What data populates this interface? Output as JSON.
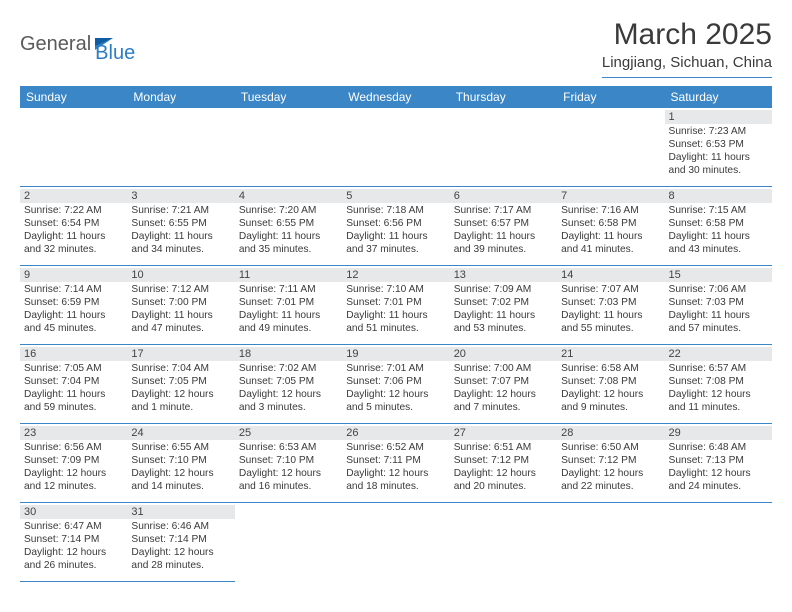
{
  "brand": {
    "part1": "General",
    "part2": "Blue"
  },
  "header": {
    "title": "March 2025",
    "location": "Lingjiang, Sichuan, China"
  },
  "colors": {
    "header_bg": "#3b86c6",
    "header_text": "#ffffff",
    "daynum_bg": "#e7e8e9",
    "rule": "#3b86c6",
    "text": "#3a3a3a",
    "logo_gray": "#5a5a5a",
    "logo_blue": "#2d7dc4"
  },
  "weekdays": [
    "Sunday",
    "Monday",
    "Tuesday",
    "Wednesday",
    "Thursday",
    "Friday",
    "Saturday"
  ],
  "cells": [
    {
      "blank": true
    },
    {
      "blank": true
    },
    {
      "blank": true
    },
    {
      "blank": true
    },
    {
      "blank": true
    },
    {
      "blank": true
    },
    {
      "day": "1",
      "sunrise": "Sunrise: 7:23 AM",
      "sunset": "Sunset: 6:53 PM",
      "daylight1": "Daylight: 11 hours",
      "daylight2": "and 30 minutes."
    },
    {
      "day": "2",
      "sunrise": "Sunrise: 7:22 AM",
      "sunset": "Sunset: 6:54 PM",
      "daylight1": "Daylight: 11 hours",
      "daylight2": "and 32 minutes."
    },
    {
      "day": "3",
      "sunrise": "Sunrise: 7:21 AM",
      "sunset": "Sunset: 6:55 PM",
      "daylight1": "Daylight: 11 hours",
      "daylight2": "and 34 minutes."
    },
    {
      "day": "4",
      "sunrise": "Sunrise: 7:20 AM",
      "sunset": "Sunset: 6:55 PM",
      "daylight1": "Daylight: 11 hours",
      "daylight2": "and 35 minutes."
    },
    {
      "day": "5",
      "sunrise": "Sunrise: 7:18 AM",
      "sunset": "Sunset: 6:56 PM",
      "daylight1": "Daylight: 11 hours",
      "daylight2": "and 37 minutes."
    },
    {
      "day": "6",
      "sunrise": "Sunrise: 7:17 AM",
      "sunset": "Sunset: 6:57 PM",
      "daylight1": "Daylight: 11 hours",
      "daylight2": "and 39 minutes."
    },
    {
      "day": "7",
      "sunrise": "Sunrise: 7:16 AM",
      "sunset": "Sunset: 6:58 PM",
      "daylight1": "Daylight: 11 hours",
      "daylight2": "and 41 minutes."
    },
    {
      "day": "8",
      "sunrise": "Sunrise: 7:15 AM",
      "sunset": "Sunset: 6:58 PM",
      "daylight1": "Daylight: 11 hours",
      "daylight2": "and 43 minutes."
    },
    {
      "day": "9",
      "sunrise": "Sunrise: 7:14 AM",
      "sunset": "Sunset: 6:59 PM",
      "daylight1": "Daylight: 11 hours",
      "daylight2": "and 45 minutes."
    },
    {
      "day": "10",
      "sunrise": "Sunrise: 7:12 AM",
      "sunset": "Sunset: 7:00 PM",
      "daylight1": "Daylight: 11 hours",
      "daylight2": "and 47 minutes."
    },
    {
      "day": "11",
      "sunrise": "Sunrise: 7:11 AM",
      "sunset": "Sunset: 7:01 PM",
      "daylight1": "Daylight: 11 hours",
      "daylight2": "and 49 minutes."
    },
    {
      "day": "12",
      "sunrise": "Sunrise: 7:10 AM",
      "sunset": "Sunset: 7:01 PM",
      "daylight1": "Daylight: 11 hours",
      "daylight2": "and 51 minutes."
    },
    {
      "day": "13",
      "sunrise": "Sunrise: 7:09 AM",
      "sunset": "Sunset: 7:02 PM",
      "daylight1": "Daylight: 11 hours",
      "daylight2": "and 53 minutes."
    },
    {
      "day": "14",
      "sunrise": "Sunrise: 7:07 AM",
      "sunset": "Sunset: 7:03 PM",
      "daylight1": "Daylight: 11 hours",
      "daylight2": "and 55 minutes."
    },
    {
      "day": "15",
      "sunrise": "Sunrise: 7:06 AM",
      "sunset": "Sunset: 7:03 PM",
      "daylight1": "Daylight: 11 hours",
      "daylight2": "and 57 minutes."
    },
    {
      "day": "16",
      "sunrise": "Sunrise: 7:05 AM",
      "sunset": "Sunset: 7:04 PM",
      "daylight1": "Daylight: 11 hours",
      "daylight2": "and 59 minutes."
    },
    {
      "day": "17",
      "sunrise": "Sunrise: 7:04 AM",
      "sunset": "Sunset: 7:05 PM",
      "daylight1": "Daylight: 12 hours",
      "daylight2": "and 1 minute."
    },
    {
      "day": "18",
      "sunrise": "Sunrise: 7:02 AM",
      "sunset": "Sunset: 7:05 PM",
      "daylight1": "Daylight: 12 hours",
      "daylight2": "and 3 minutes."
    },
    {
      "day": "19",
      "sunrise": "Sunrise: 7:01 AM",
      "sunset": "Sunset: 7:06 PM",
      "daylight1": "Daylight: 12 hours",
      "daylight2": "and 5 minutes."
    },
    {
      "day": "20",
      "sunrise": "Sunrise: 7:00 AM",
      "sunset": "Sunset: 7:07 PM",
      "daylight1": "Daylight: 12 hours",
      "daylight2": "and 7 minutes."
    },
    {
      "day": "21",
      "sunrise": "Sunrise: 6:58 AM",
      "sunset": "Sunset: 7:08 PM",
      "daylight1": "Daylight: 12 hours",
      "daylight2": "and 9 minutes."
    },
    {
      "day": "22",
      "sunrise": "Sunrise: 6:57 AM",
      "sunset": "Sunset: 7:08 PM",
      "daylight1": "Daylight: 12 hours",
      "daylight2": "and 11 minutes."
    },
    {
      "day": "23",
      "sunrise": "Sunrise: 6:56 AM",
      "sunset": "Sunset: 7:09 PM",
      "daylight1": "Daylight: 12 hours",
      "daylight2": "and 12 minutes."
    },
    {
      "day": "24",
      "sunrise": "Sunrise: 6:55 AM",
      "sunset": "Sunset: 7:10 PM",
      "daylight1": "Daylight: 12 hours",
      "daylight2": "and 14 minutes."
    },
    {
      "day": "25",
      "sunrise": "Sunrise: 6:53 AM",
      "sunset": "Sunset: 7:10 PM",
      "daylight1": "Daylight: 12 hours",
      "daylight2": "and 16 minutes."
    },
    {
      "day": "26",
      "sunrise": "Sunrise: 6:52 AM",
      "sunset": "Sunset: 7:11 PM",
      "daylight1": "Daylight: 12 hours",
      "daylight2": "and 18 minutes."
    },
    {
      "day": "27",
      "sunrise": "Sunrise: 6:51 AM",
      "sunset": "Sunset: 7:12 PM",
      "daylight1": "Daylight: 12 hours",
      "daylight2": "and 20 minutes."
    },
    {
      "day": "28",
      "sunrise": "Sunrise: 6:50 AM",
      "sunset": "Sunset: 7:12 PM",
      "daylight1": "Daylight: 12 hours",
      "daylight2": "and 22 minutes."
    },
    {
      "day": "29",
      "sunrise": "Sunrise: 6:48 AM",
      "sunset": "Sunset: 7:13 PM",
      "daylight1": "Daylight: 12 hours",
      "daylight2": "and 24 minutes."
    },
    {
      "day": "30",
      "sunrise": "Sunrise: 6:47 AM",
      "sunset": "Sunset: 7:14 PM",
      "daylight1": "Daylight: 12 hours",
      "daylight2": "and 26 minutes."
    },
    {
      "day": "31",
      "sunrise": "Sunrise: 6:46 AM",
      "sunset": "Sunset: 7:14 PM",
      "daylight1": "Daylight: 12 hours",
      "daylight2": "and 28 minutes."
    },
    {
      "blank": true
    },
    {
      "blank": true
    },
    {
      "blank": true
    },
    {
      "blank": true
    },
    {
      "blank": true
    }
  ]
}
